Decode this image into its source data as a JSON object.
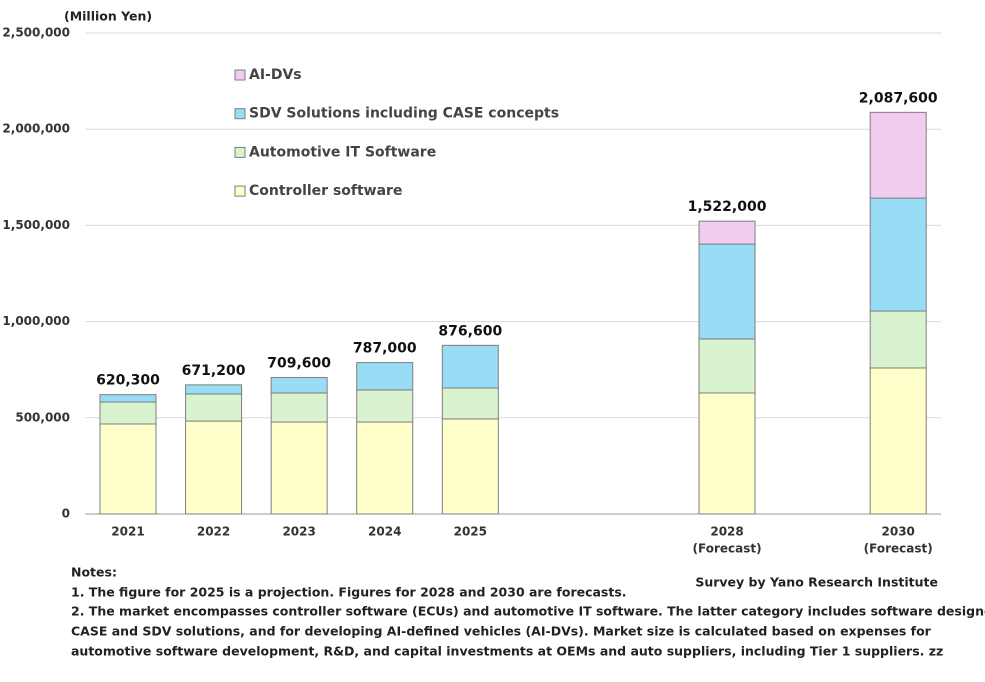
{
  "chart_data": {
    "type": "stacked-bar",
    "unit_label": "(Million Yen)",
    "categories": [
      "2021",
      "2022",
      "2023",
      "2024",
      "2025",
      null,
      null,
      "2028",
      null,
      "2030"
    ],
    "category_notes": [
      null,
      null,
      null,
      null,
      null,
      null,
      null,
      "(Forecast)",
      null,
      "(Forecast)"
    ],
    "series": [
      {
        "name": "Controller software",
        "color": "#ffffcc",
        "values": [
          468000,
          483000,
          478000,
          478000,
          494000,
          null,
          null,
          629000,
          null,
          759000
        ]
      },
      {
        "name": "Automotive IT Software",
        "color": "#d9f2d0",
        "values": [
          114000,
          141000,
          151000,
          167000,
          161000,
          null,
          null,
          281000,
          null,
          296000
        ]
      },
      {
        "name": "SDV Solutions including CASE concepts",
        "color": "#99dcf5",
        "values": [
          38300,
          47200,
          80600,
          142000,
          221600,
          null,
          null,
          493000,
          null,
          587000
        ]
      },
      {
        "name": "AI-DVs",
        "color": "#f2ccee",
        "values": [
          null,
          null,
          null,
          null,
          null,
          null,
          null,
          119000,
          null,
          445600
        ]
      }
    ],
    "totals": [
      620300,
      671200,
      709600,
      787000,
      876600,
      null,
      null,
      1522000,
      null,
      2087600
    ],
    "total_labels": [
      "620,300",
      "671,200",
      "709,600",
      "787,000",
      "876,600",
      null,
      null,
      "1,522,000",
      null,
      "2,087,600"
    ],
    "ylim": [
      0,
      2500000
    ],
    "yticks": [
      0,
      {
        "value": 500000,
        "label": "500,000"
      },
      {
        "value": 1000000,
        "label": "1,000,000"
      },
      {
        "value": 1500000,
        "label": "1,500,000"
      },
      {
        "value": 2000000,
        "label": "2,000,000"
      },
      {
        "value": 2500000,
        "label": "2,500,000"
      }
    ],
    "grid": true,
    "source": "Survey by Yano Research Institute",
    "notes": [
      "Notes:",
      "1. The figure for 2025 is a projection. Figures for 2028 and 2030 are forecasts.",
      "2. The market encompasses controller software (ECUs) and automotive IT software. The latter category includes software designed for",
      "CASE and SDV solutions, and for developing AI-defined vehicles (AI-DVs).  Market size is calculated based on expenses for",
      "automotive software development, R&D, and capital investments at OEMs and auto suppliers, including Tier 1 suppliers. zz"
    ]
  }
}
